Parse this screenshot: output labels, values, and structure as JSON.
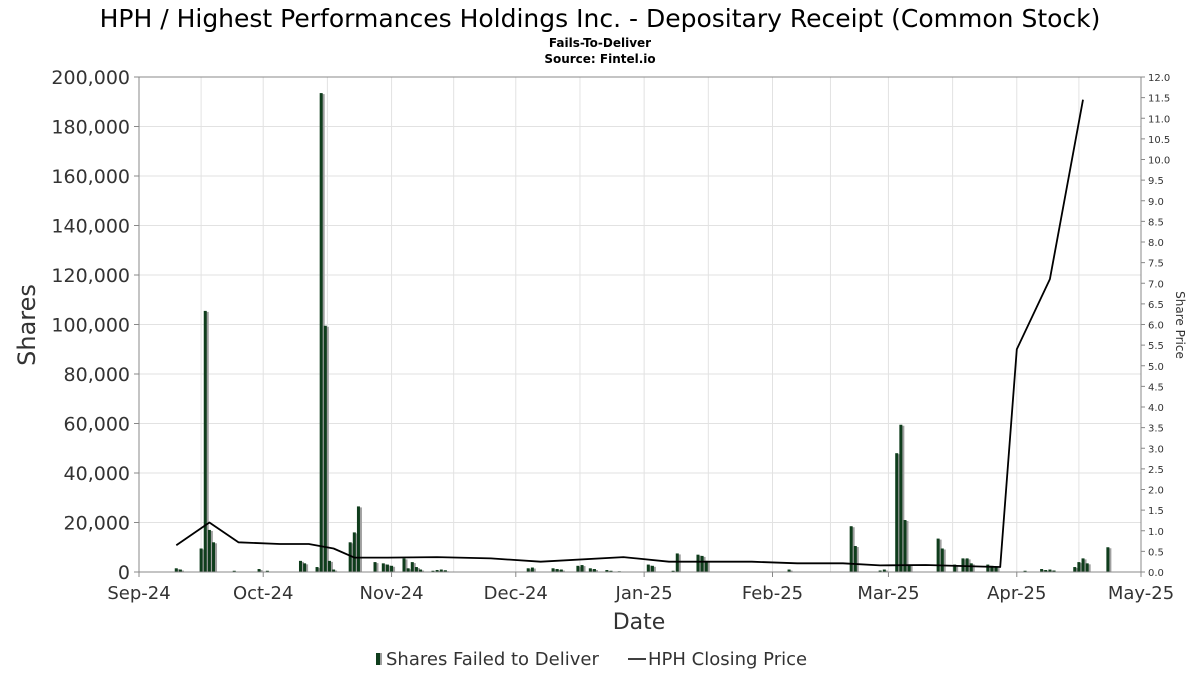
{
  "chart_data": {
    "type": "bar",
    "title": "HPH / Highest Performances Holdings Inc. - Depositary Receipt (Common Stock)",
    "subtitle_lines": [
      "Fails-To-Deliver",
      "Source: Fintel.io"
    ],
    "xlabel": "Date",
    "ylabel": "Shares",
    "y2label": "Share Price",
    "x_tick_labels": [
      "Sep-24",
      "Oct-24",
      "Nov-24",
      "Dec-24",
      "Jan-25",
      "Feb-25",
      "Mar-25",
      "Apr-25",
      "May-25"
    ],
    "x_range": [
      "2024-09-01",
      "2025-05-01"
    ],
    "ylim": [
      0,
      200000
    ],
    "y_ticks": [
      0,
      20000,
      40000,
      60000,
      80000,
      100000,
      120000,
      140000,
      160000,
      180000,
      200000
    ],
    "y_tick_labels": [
      "0",
      "20,000",
      "40,000",
      "60,000",
      "80,000",
      "100,000",
      "120,000",
      "140,000",
      "160,000",
      "180,000",
      "200,000"
    ],
    "y2lim": [
      0,
      12
    ],
    "y2_ticks": [
      0,
      0.5,
      1,
      1.5,
      2,
      2.5,
      3,
      3.5,
      4,
      4.5,
      5,
      5.5,
      6,
      6.5,
      7,
      7.5,
      8,
      8.5,
      9,
      9.5,
      10,
      10.5,
      11,
      11.5,
      12
    ],
    "y2_tick_labels": [
      "0.0",
      "0.5",
      "1.0",
      "1.5",
      "2.0",
      "2.5",
      "3.0",
      "3.5",
      "4.0",
      "4.5",
      "5.0",
      "5.5",
      "6.0",
      "6.5",
      "7.0",
      "7.5",
      "8.0",
      "8.5",
      "9.0",
      "9.5",
      "10.0",
      "10.5",
      "11.0",
      "11.5",
      "12.0"
    ],
    "grid": true,
    "legend_position": "bottom",
    "series": [
      {
        "name": "Shares Failed to Deliver",
        "type": "bar",
        "color": "#0f3d1c",
        "shadow_color": "#a0a0a0",
        "x": [
          "2024-09-10",
          "2024-09-11",
          "2024-09-16",
          "2024-09-17",
          "2024-09-18",
          "2024-09-19",
          "2024-09-24",
          "2024-09-30",
          "2024-10-02",
          "2024-10-10",
          "2024-10-11",
          "2024-10-14",
          "2024-10-15",
          "2024-10-16",
          "2024-10-17",
          "2024-10-18",
          "2024-10-22",
          "2024-10-23",
          "2024-10-24",
          "2024-10-28",
          "2024-10-30",
          "2024-10-31",
          "2024-11-01",
          "2024-11-04",
          "2024-11-05",
          "2024-11-06",
          "2024-11-07",
          "2024-11-08",
          "2024-11-11",
          "2024-11-12",
          "2024-11-13",
          "2024-11-14",
          "2024-12-04",
          "2024-12-05",
          "2024-12-10",
          "2024-12-11",
          "2024-12-12",
          "2024-12-16",
          "2024-12-17",
          "2024-12-19",
          "2024-12-20",
          "2024-12-23",
          "2024-12-24",
          "2024-12-26",
          "2025-01-02",
          "2025-01-03",
          "2025-01-08",
          "2025-01-09",
          "2025-01-14",
          "2025-01-15",
          "2025-01-16",
          "2025-02-05",
          "2025-02-20",
          "2025-02-21",
          "2025-02-27",
          "2025-02-28",
          "2025-03-03",
          "2025-03-04",
          "2025-03-05",
          "2025-03-06",
          "2025-03-13",
          "2025-03-14",
          "2025-03-17",
          "2025-03-19",
          "2025-03-20",
          "2025-03-21",
          "2025-03-25",
          "2025-03-26",
          "2025-03-27",
          "2025-04-03",
          "2025-04-07",
          "2025-04-08",
          "2025-04-09",
          "2025-04-10",
          "2025-04-15",
          "2025-04-16",
          "2025-04-17",
          "2025-04-18",
          "2025-04-23"
        ],
        "values": [
          1500,
          1000,
          9500,
          105500,
          17000,
          12000,
          500,
          1200,
          500,
          4500,
          3500,
          2000,
          193500,
          99500,
          4500,
          1000,
          12000,
          16000,
          26500,
          4000,
          3500,
          3000,
          2500,
          5500,
          1500,
          4000,
          2000,
          1000,
          500,
          800,
          1000,
          700,
          1500,
          1800,
          1500,
          1200,
          1000,
          2500,
          2800,
          1500,
          1200,
          800,
          500,
          300,
          3000,
          2500,
          500,
          7500,
          7000,
          6500,
          4500,
          1000,
          18500,
          10500,
          600,
          1000,
          48000,
          59500,
          21000,
          3000,
          13500,
          9500,
          3000,
          5500,
          5500,
          3500,
          3000,
          2500,
          2000,
          500,
          1200,
          800,
          1000,
          600,
          2000,
          4000,
          5500,
          3500,
          10000
        ]
      },
      {
        "name": "HPH Closing Price",
        "type": "line",
        "color": "#000000",
        "x": [
          "2024-09-10",
          "2024-09-18",
          "2024-09-25",
          "2024-10-05",
          "2024-10-12",
          "2024-10-18",
          "2024-10-23",
          "2024-10-31",
          "2024-11-12",
          "2024-11-25",
          "2024-12-07",
          "2024-12-27",
          "2025-01-07",
          "2025-01-15",
          "2025-01-27",
          "2025-02-07",
          "2025-02-18",
          "2025-02-27",
          "2025-03-10",
          "2025-03-24",
          "2025-03-28",
          "2025-04-01",
          "2025-04-09",
          "2025-04-17"
        ],
        "values": [
          0.65,
          1.2,
          0.72,
          0.68,
          0.68,
          0.57,
          0.35,
          0.35,
          0.36,
          0.33,
          0.25,
          0.36,
          0.25,
          0.25,
          0.25,
          0.21,
          0.21,
          0.16,
          0.17,
          0.13,
          0.12,
          5.4,
          7.1,
          11.45
        ]
      }
    ]
  }
}
